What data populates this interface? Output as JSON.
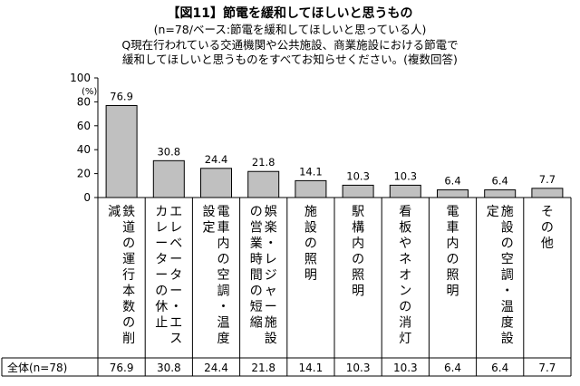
{
  "header": {
    "title": "【図11】節電を緩和してほしいと思うもの",
    "sub1": "(n=78/ベース:節電を緩和してほしいと思っている人)",
    "sub2": "Q現在行われている交通機関や公共施設、商業施設における節電で",
    "sub3": "緩和してほしいと思うものをすべてお知らせください。(複数回答)"
  },
  "chart_data": {
    "type": "bar",
    "unit_label": "(%)",
    "ylim": [
      0,
      100
    ],
    "yticks": [
      0,
      20,
      40,
      60,
      80,
      100
    ],
    "grid": false,
    "categories": [
      "鉄道の運行本数の削減",
      "エレベーター・エスカレーターの休止",
      "電車内の空調・温度設定",
      "娯楽・レジャー施設の営業時間の短縮",
      "施設の照明",
      "駅構内の照明",
      "看板やネオンの消灯",
      "電車内の照明",
      "施設の空調・温度設定",
      "その他"
    ],
    "values": [
      76.9,
      30.8,
      24.4,
      21.8,
      14.1,
      10.3,
      10.3,
      6.4,
      6.4,
      7.7
    ],
    "bar_color": "#c0c0c0",
    "total_row": {
      "label": "全体(n=78)",
      "values": [
        "76.9",
        "30.8",
        "24.4",
        "21.8",
        "14.1",
        "10.3",
        "10.3",
        "6.4",
        "6.4",
        "7.7"
      ]
    }
  }
}
